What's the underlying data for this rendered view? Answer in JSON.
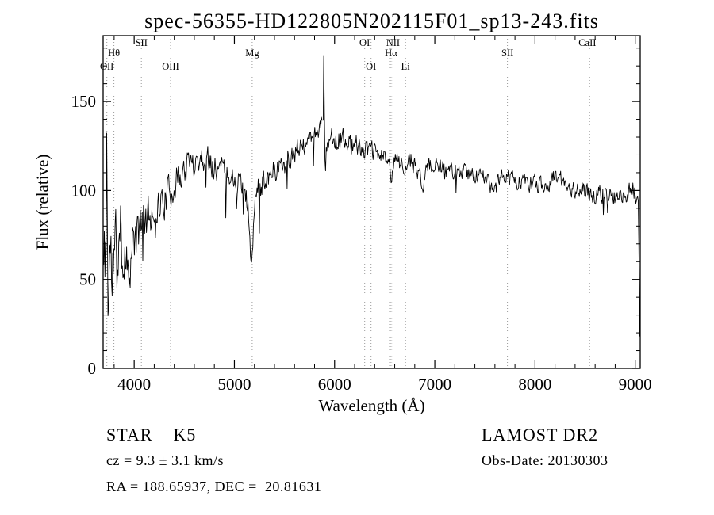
{
  "figure": {
    "title": "spec-56355-HD122805N202115F01_sp13-243.fits"
  },
  "footer": {
    "class_label": "STAR    K5",
    "survey": "LAMOST DR2",
    "cz": "cz = 9.3 ± 3.1 km/s",
    "obs_date": "Obs-Date: 20130303",
    "coords": "RA = 188.65937, DEC =  20.81631"
  },
  "chart_data": {
    "type": "line",
    "title": "spec-56355-HD122805N202115F01_sp13-243.fits",
    "xlabel": "Wavelength (Å)",
    "ylabel": "Flux (relative)",
    "xlim": [
      3690,
      9050
    ],
    "ylim": [
      0,
      187
    ],
    "xticks": [
      4000,
      5000,
      6000,
      7000,
      8000,
      9000
    ],
    "x_minor_step": 200,
    "yticks": [
      0,
      50,
      100,
      150
    ],
    "y_minor_step": 10,
    "grid": false,
    "legend": "none",
    "line_color": "#000000",
    "marker_line_color": "#999999",
    "background": "#ffffff",
    "label_rows_y": [
      58,
      71,
      88
    ],
    "spectral_lines": [
      {
        "label": "OII",
        "wavelength": 3727,
        "row": 2
      },
      {
        "label": "Hθ",
        "wavelength": 3798,
        "row": 1
      },
      {
        "label": "SII",
        "wavelength": 4072,
        "row": 0
      },
      {
        "label": "OIII",
        "wavelength": 4363,
        "row": 2
      },
      {
        "label": "Mg",
        "wavelength": 5178,
        "row": 1
      },
      {
        "label": "OI",
        "wavelength": 6300,
        "row": 0
      },
      {
        "label": "OI",
        "wavelength": 6364,
        "row": 2
      },
      {
        "label": "Hα",
        "wavelength": 6563,
        "row": 1
      },
      {
        "label": "NII",
        "wavelength": 6583,
        "row": 0
      },
      {
        "label": "Li",
        "wavelength": 6708,
        "row": 2
      },
      {
        "label": "SII",
        "wavelength": 7725,
        "row": 1
      },
      {
        "label": "CaII",
        "wavelength": 8500,
        "row": 0,
        "label_wavelength": 8522
      }
    ],
    "extra_line_wavelengths": [
      6548,
      8545
    ],
    "anchors": [
      [
        3690,
        60
      ],
      [
        3700,
        45
      ],
      [
        3710,
        75
      ],
      [
        3720,
        65
      ],
      [
        3727,
        150
      ],
      [
        3733,
        60
      ],
      [
        3740,
        40
      ],
      [
        3750,
        55
      ],
      [
        3760,
        70
      ],
      [
        3775,
        50
      ],
      [
        3790,
        62
      ],
      [
        3800,
        58
      ],
      [
        3815,
        68
      ],
      [
        3830,
        60
      ],
      [
        3850,
        68
      ],
      [
        3870,
        75
      ],
      [
        3890,
        60
      ],
      [
        3910,
        72
      ],
      [
        3930,
        55
      ],
      [
        3950,
        65
      ],
      [
        3970,
        60
      ],
      [
        3990,
        70
      ],
      [
        4010,
        75
      ],
      [
        4030,
        70
      ],
      [
        4050,
        78
      ],
      [
        4070,
        85
      ],
      [
        4090,
        80
      ],
      [
        4110,
        85
      ],
      [
        4130,
        82
      ],
      [
        4150,
        86
      ],
      [
        4180,
        88
      ],
      [
        4210,
        90
      ],
      [
        4240,
        92
      ],
      [
        4270,
        93
      ],
      [
        4300,
        95
      ],
      [
        4330,
        97
      ],
      [
        4360,
        99
      ],
      [
        4400,
        104
      ],
      [
        4450,
        108
      ],
      [
        4500,
        112
      ],
      [
        4550,
        115
      ],
      [
        4600,
        117
      ],
      [
        4650,
        118
      ],
      [
        4700,
        118
      ],
      [
        4750,
        117
      ],
      [
        4800,
        115
      ],
      [
        4850,
        113
      ],
      [
        4900,
        112
      ],
      [
        4950,
        110
      ],
      [
        5000,
        108
      ],
      [
        5050,
        104
      ],
      [
        5100,
        99
      ],
      [
        5140,
        90
      ],
      [
        5165,
        62
      ],
      [
        5175,
        52
      ],
      [
        5185,
        70
      ],
      [
        5200,
        92
      ],
      [
        5230,
        100
      ],
      [
        5260,
        104
      ],
      [
        5300,
        107
      ],
      [
        5350,
        110
      ],
      [
        5400,
        112
      ],
      [
        5450,
        114
      ],
      [
        5500,
        116
      ],
      [
        5550,
        118
      ],
      [
        5600,
        121
      ],
      [
        5650,
        123
      ],
      [
        5700,
        125
      ],
      [
        5750,
        128
      ],
      [
        5800,
        131
      ],
      [
        5840,
        134
      ],
      [
        5870,
        138
      ],
      [
        5885,
        145
      ],
      [
        5893,
        183
      ],
      [
        5900,
        125
      ],
      [
        5908,
        100
      ],
      [
        5915,
        122
      ],
      [
        5930,
        128
      ],
      [
        5950,
        130
      ],
      [
        5980,
        131
      ],
      [
        6010,
        130
      ],
      [
        6050,
        129
      ],
      [
        6100,
        128
      ],
      [
        6150,
        127
      ],
      [
        6200,
        126
      ],
      [
        6250,
        125
      ],
      [
        6300,
        123
      ],
      [
        6350,
        122
      ],
      [
        6400,
        121
      ],
      [
        6450,
        120
      ],
      [
        6500,
        119
      ],
      [
        6540,
        116
      ],
      [
        6563,
        108
      ],
      [
        6580,
        114
      ],
      [
        6620,
        117
      ],
      [
        6660,
        116
      ],
      [
        6700,
        115
      ],
      [
        6750,
        115
      ],
      [
        6800,
        114
      ],
      [
        6860,
        106
      ],
      [
        6880,
        104
      ],
      [
        6900,
        112
      ],
      [
        6950,
        113
      ],
      [
        7000,
        113
      ],
      [
        7050,
        112
      ],
      [
        7100,
        112
      ],
      [
        7150,
        111
      ],
      [
        7200,
        111
      ],
      [
        7250,
        110
      ],
      [
        7300,
        110
      ],
      [
        7350,
        109
      ],
      [
        7400,
        109
      ],
      [
        7450,
        108
      ],
      [
        7500,
        107
      ],
      [
        7550,
        104
      ],
      [
        7600,
        100
      ],
      [
        7630,
        104
      ],
      [
        7660,
        107
      ],
      [
        7700,
        108
      ],
      [
        7750,
        107
      ],
      [
        7800,
        106
      ],
      [
        7850,
        105
      ],
      [
        7900,
        105
      ],
      [
        7950,
        104
      ],
      [
        8000,
        104
      ],
      [
        8050,
        103
      ],
      [
        8100,
        103
      ],
      [
        8150,
        105
      ],
      [
        8200,
        108
      ],
      [
        8250,
        106
      ],
      [
        8300,
        104
      ],
      [
        8350,
        102
      ],
      [
        8400,
        101
      ],
      [
        8450,
        100
      ],
      [
        8500,
        99
      ],
      [
        8550,
        98
      ],
      [
        8600,
        97
      ],
      [
        8650,
        98
      ],
      [
        8700,
        99
      ],
      [
        8750,
        97
      ],
      [
        8800,
        96
      ],
      [
        8850,
        95
      ],
      [
        8900,
        96
      ],
      [
        8930,
        100
      ],
      [
        8960,
        102
      ],
      [
        8990,
        100
      ],
      [
        9010,
        97
      ],
      [
        9030,
        90
      ],
      [
        9040,
        60
      ],
      [
        9045,
        18
      ]
    ],
    "noise": {
      "seed": 11,
      "sample_step": 6,
      "amplitude_points": [
        [
          3690,
          42
        ],
        [
          3730,
          40
        ],
        [
          3780,
          30
        ],
        [
          3850,
          24
        ],
        [
          3950,
          20
        ],
        [
          4050,
          15
        ],
        [
          4200,
          12
        ],
        [
          4400,
          10
        ],
        [
          4600,
          9
        ],
        [
          4900,
          8
        ],
        [
          5175,
          8
        ],
        [
          5500,
          8
        ],
        [
          5893,
          5
        ],
        [
          6000,
          7
        ],
        [
          6300,
          6
        ],
        [
          6600,
          6
        ],
        [
          7000,
          5.5
        ],
        [
          7500,
          5
        ],
        [
          8000,
          5
        ],
        [
          8500,
          5.5
        ],
        [
          8800,
          6
        ],
        [
          9000,
          6
        ],
        [
          9045,
          4
        ]
      ]
    }
  }
}
